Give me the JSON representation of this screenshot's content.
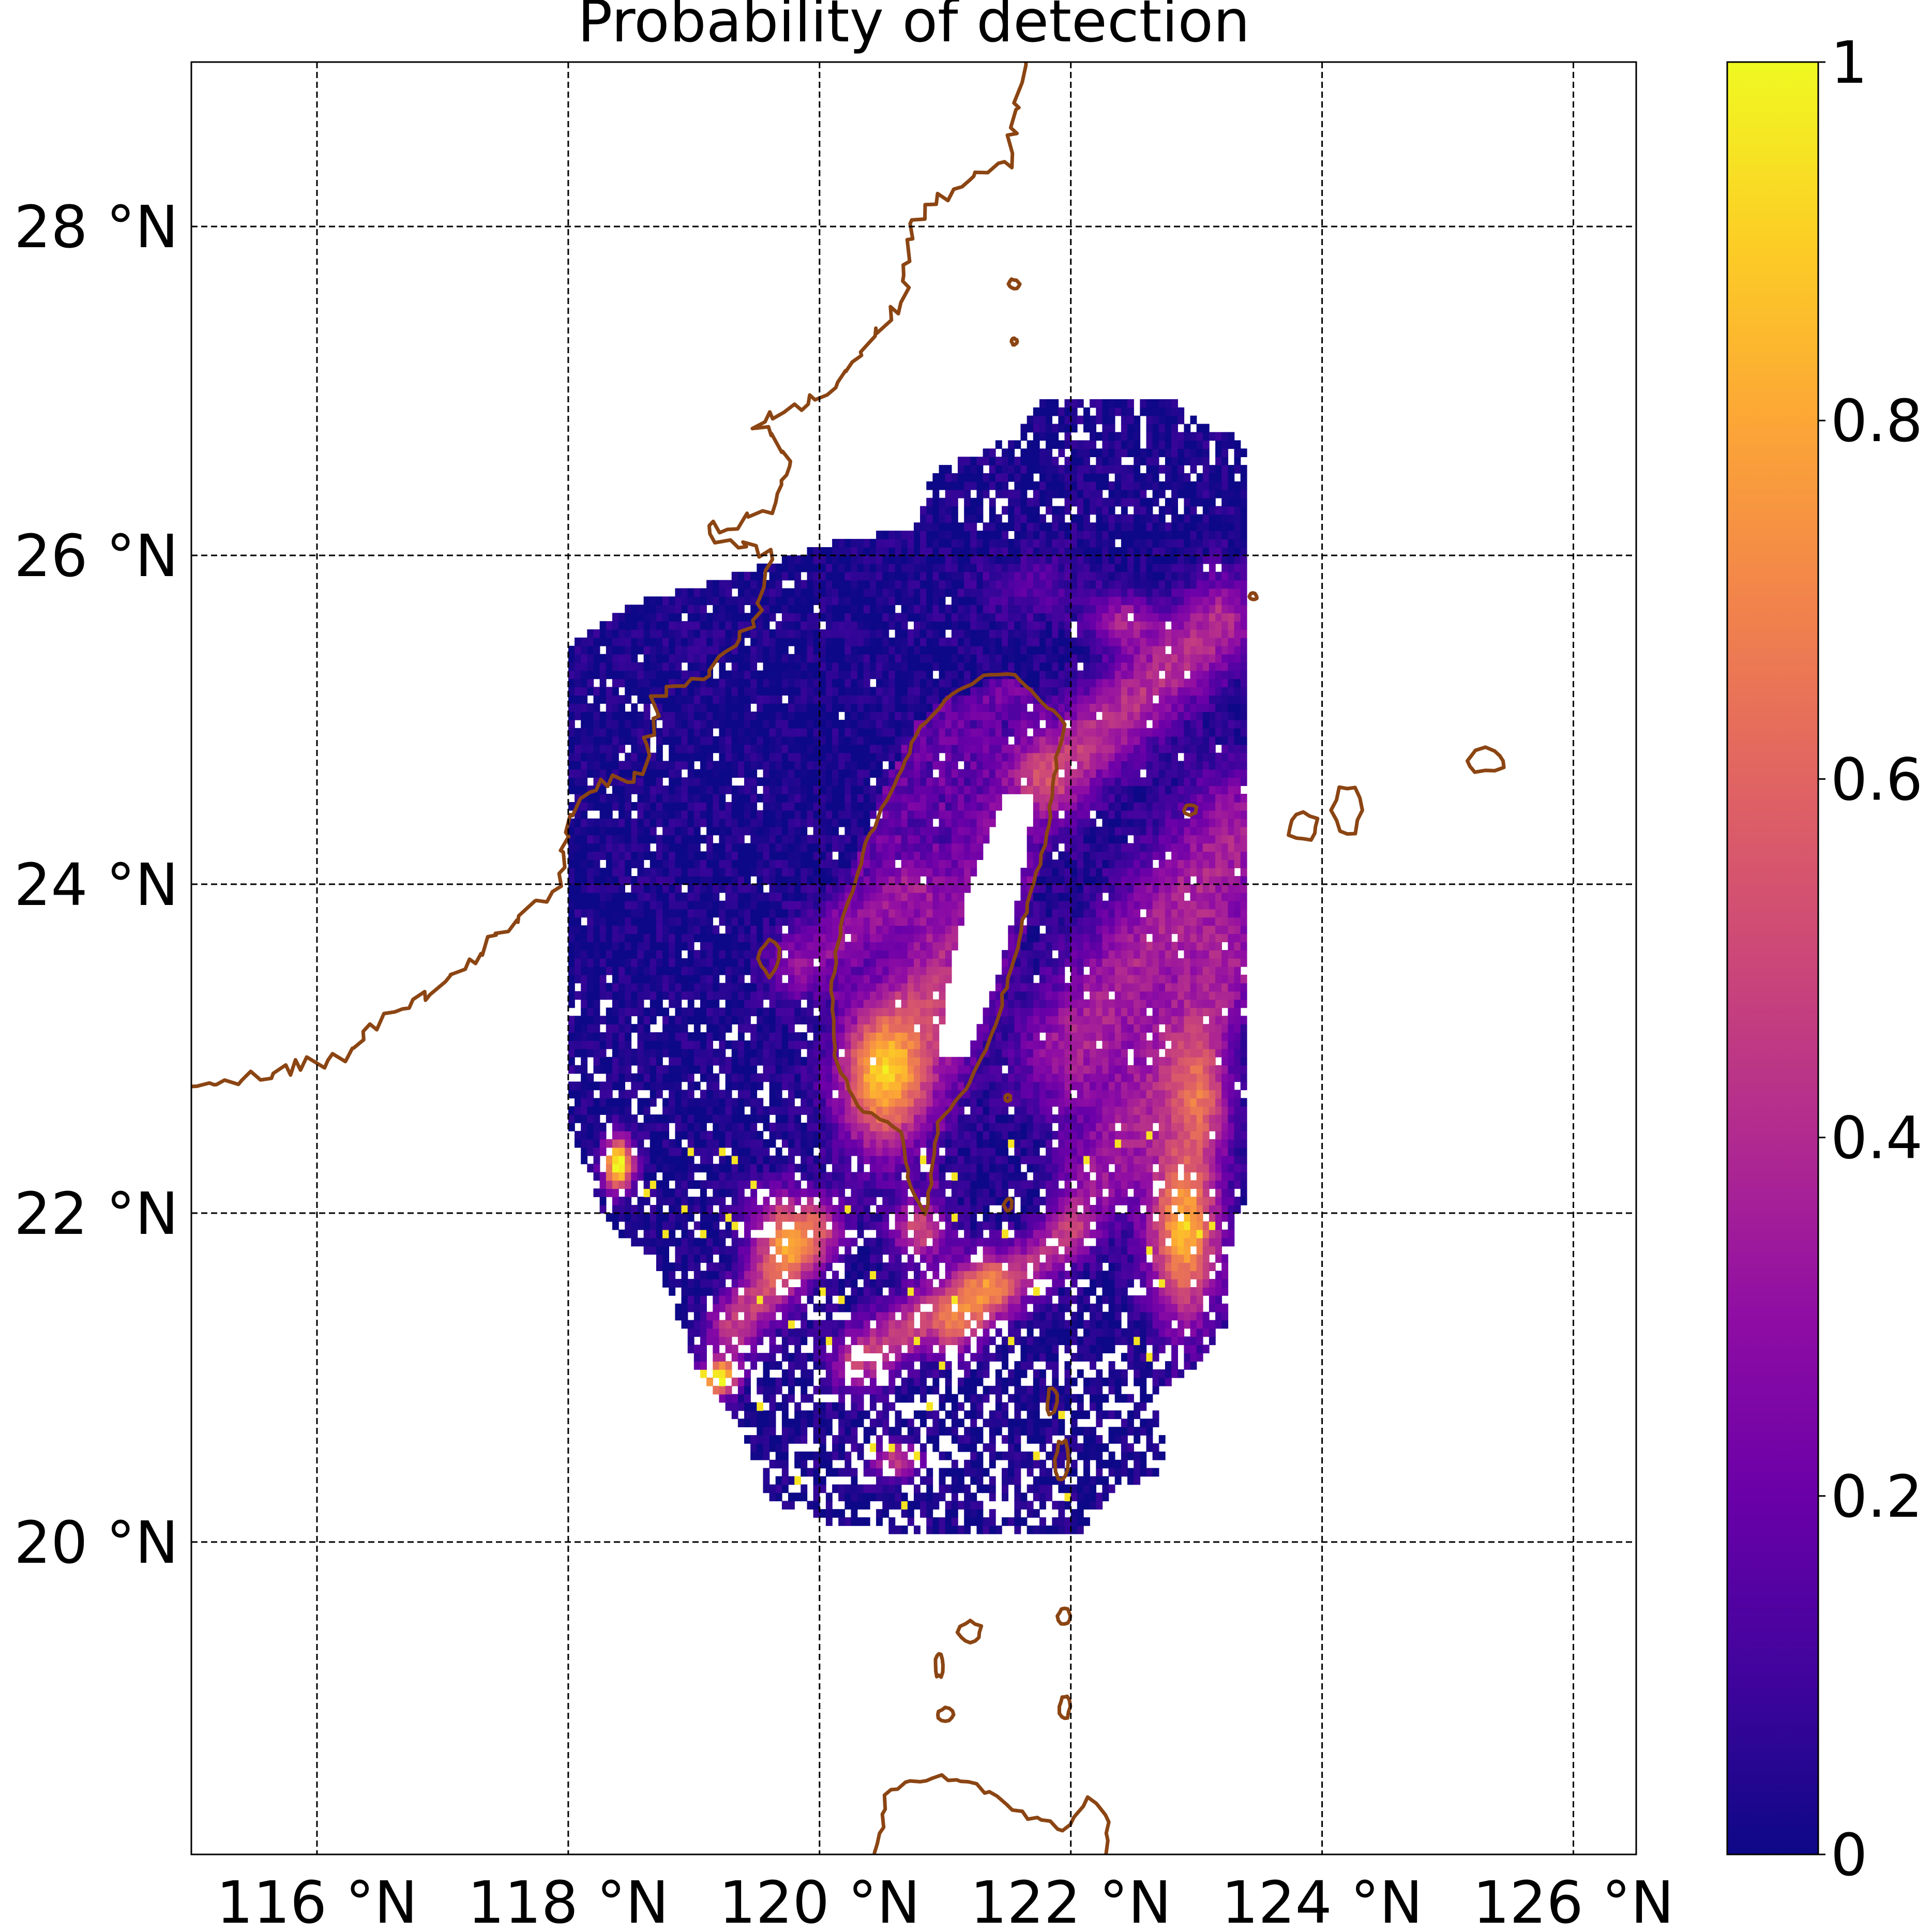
{
  "title": "Probability of detection",
  "map": {
    "lon_range": [
      115.0,
      126.5
    ],
    "lat_range": [
      18.1,
      29.0
    ],
    "x_ticks": [
      {
        "value": 116,
        "label": "116 °N"
      },
      {
        "value": 118,
        "label": "118 °N"
      },
      {
        "value": 120,
        "label": "120 °N"
      },
      {
        "value": 122,
        "label": "122 °N"
      },
      {
        "value": 124,
        "label": "124 °N"
      },
      {
        "value": 126,
        "label": "126 °N"
      }
    ],
    "y_ticks": [
      {
        "value": 28,
        "label": "28 °N"
      },
      {
        "value": 26,
        "label": "26 °N"
      },
      {
        "value": 24,
        "label": "24 °N"
      },
      {
        "value": 22,
        "label": "22 °N"
      },
      {
        "value": 20,
        "label": "20 °N"
      }
    ],
    "grid": "dashed",
    "coastline_color": "#8B4513",
    "colormap": "plasma",
    "no_data_color": "#ffffff",
    "data_extent": {
      "lon": [
        118.0,
        123.4
      ],
      "lat": [
        20.05,
        26.95
      ]
    }
  },
  "colorbar": {
    "min": 0,
    "max": 1,
    "ticks": [
      {
        "value": 0,
        "label": "0"
      },
      {
        "value": 0.2,
        "label": "0.2"
      },
      {
        "value": 0.4,
        "label": "0.4"
      },
      {
        "value": 0.6,
        "label": "0.6"
      },
      {
        "value": 0.8,
        "label": "0.8"
      },
      {
        "value": 1,
        "label": "1"
      }
    ]
  }
}
